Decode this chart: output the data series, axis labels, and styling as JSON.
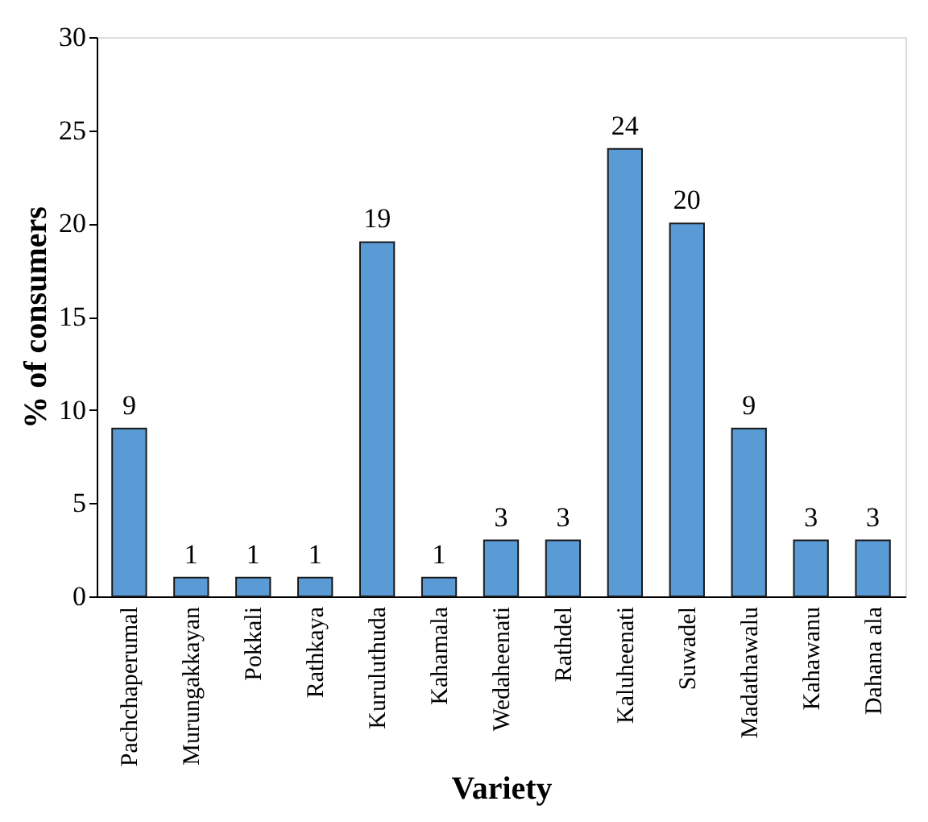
{
  "chart_data": {
    "type": "bar",
    "xlabel": "Variety",
    "ylabel": "% of consumers",
    "categories": [
      "Pachchaperumal",
      "Murungakkayan",
      "Pokkali",
      "Rathkaya",
      "Kuruluthuda",
      "Kahamala",
      "Wedaheenati",
      "Rathdel",
      "Kaluheenati",
      "Suwadel",
      "Madathawalu",
      "Kahawanu",
      "Dahana ala"
    ],
    "values": [
      9,
      1,
      1,
      1,
      19,
      1,
      3,
      3,
      24,
      20,
      9,
      3,
      3
    ],
    "color": "#5b9bd5",
    "ylim": [
      0,
      30
    ],
    "yticks": [
      0,
      5,
      10,
      15,
      20,
      25,
      30
    ],
    "data_labels": true,
    "grid": false
  }
}
